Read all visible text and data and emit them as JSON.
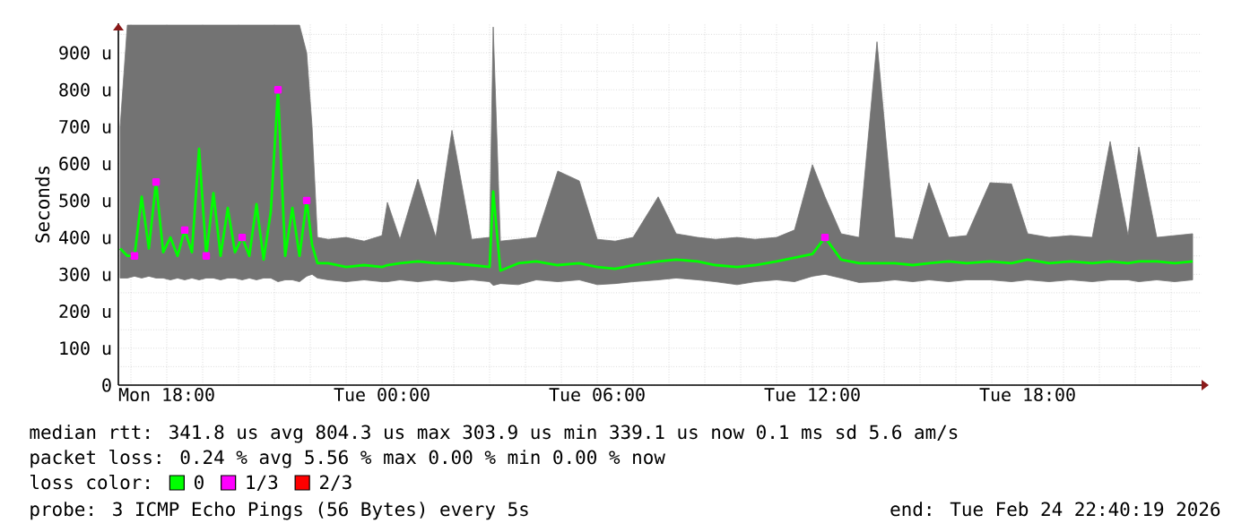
{
  "chart_data": {
    "type": "line",
    "ylabel": "Seconds",
    "legend_title": "loss color:",
    "legend": "bottom",
    "grid": true,
    "xlim": [
      "2026-02-23T16:39",
      "2026-02-24T22:51"
    ],
    "ylim": [
      0,
      980
    ],
    "xticks": [
      {
        "value": "2026-02-23T17:00",
        "label": null
      },
      {
        "value": "2026-02-23T18:00",
        "label": "Mon 18:00"
      },
      {
        "value": "2026-02-23T19:00",
        "label": null
      },
      {
        "value": "2026-02-23T20:00",
        "label": null
      },
      {
        "value": "2026-02-23T21:00",
        "label": null
      },
      {
        "value": "2026-02-23T22:00",
        "label": null
      },
      {
        "value": "2026-02-23T23:00",
        "label": null
      },
      {
        "value": "2026-02-24T00:00",
        "label": "Tue 00:00"
      },
      {
        "value": "2026-02-24T01:00",
        "label": null
      },
      {
        "value": "2026-02-24T02:00",
        "label": null
      },
      {
        "value": "2026-02-24T03:00",
        "label": null
      },
      {
        "value": "2026-02-24T04:00",
        "label": null
      },
      {
        "value": "2026-02-24T05:00",
        "label": null
      },
      {
        "value": "2026-02-24T06:00",
        "label": "Tue 06:00"
      },
      {
        "value": "2026-02-24T07:00",
        "label": null
      },
      {
        "value": "2026-02-24T08:00",
        "label": null
      },
      {
        "value": "2026-02-24T09:00",
        "label": null
      },
      {
        "value": "2026-02-24T10:00",
        "label": null
      },
      {
        "value": "2026-02-24T11:00",
        "label": null
      },
      {
        "value": "2026-02-24T12:00",
        "label": "Tue 12:00"
      },
      {
        "value": "2026-02-24T13:00",
        "label": null
      },
      {
        "value": "2026-02-24T14:00",
        "label": null
      },
      {
        "value": "2026-02-24T15:00",
        "label": null
      },
      {
        "value": "2026-02-24T16:00",
        "label": null
      },
      {
        "value": "2026-02-24T17:00",
        "label": null
      },
      {
        "value": "2026-02-24T18:00",
        "label": "Tue 18:00"
      },
      {
        "value": "2026-02-24T19:00",
        "label": null
      },
      {
        "value": "2026-02-24T20:00",
        "label": null
      },
      {
        "value": "2026-02-24T21:00",
        "label": null
      },
      {
        "value": "2026-02-24T22:00",
        "label": null
      }
    ],
    "yticks": [
      0,
      {
        "value": 50,
        "label": null
      },
      {
        "value": 100,
        "label": "100 u"
      },
      {
        "value": 150,
        "label": null
      },
      {
        "value": 200,
        "label": "200 u"
      },
      {
        "value": 250,
        "label": null
      },
      {
        "value": 300,
        "label": "300 u"
      },
      {
        "value": 350,
        "label": null
      },
      {
        "value": 400,
        "label": "400 u"
      },
      {
        "value": 450,
        "label": null
      },
      {
        "value": 500,
        "label": "500 u"
      },
      {
        "value": 550,
        "label": null
      },
      {
        "value": 600,
        "label": "600 u"
      },
      {
        "value": 650,
        "label": null
      },
      {
        "value": 700,
        "label": "700 u"
      },
      {
        "value": 750,
        "label": null
      },
      {
        "value": 800,
        "label": "800 u"
      },
      {
        "value": 850,
        "label": null
      },
      {
        "value": 900,
        "label": "900 u"
      },
      {
        "value": 950,
        "label": null
      }
    ],
    "series": [
      {
        "name": "0",
        "color": "#00ff00",
        "marker": "none",
        "x": [
          "2026-02-23T16:42",
          "2026-02-23T16:54",
          "2026-02-23T17:06",
          "2026-02-23T17:18",
          "2026-02-23T17:30",
          "2026-02-23T17:42",
          "2026-02-23T17:54",
          "2026-02-23T18:06",
          "2026-02-23T18:18",
          "2026-02-23T18:30",
          "2026-02-23T18:42",
          "2026-02-23T18:54",
          "2026-02-23T19:06",
          "2026-02-23T19:18",
          "2026-02-23T19:30",
          "2026-02-23T19:42",
          "2026-02-23T19:54",
          "2026-02-23T20:06",
          "2026-02-23T20:18",
          "2026-02-23T20:30",
          "2026-02-23T20:42",
          "2026-02-23T20:54",
          "2026-02-23T21:06",
          "2026-02-23T21:18",
          "2026-02-23T21:30",
          "2026-02-23T21:42",
          "2026-02-23T21:54",
          "2026-02-23T22:03",
          "2026-02-23T22:12",
          "2026-02-23T22:30",
          "2026-02-23T23:00",
          "2026-02-23T23:30",
          "2026-02-24T00:00",
          "2026-02-24T00:09",
          "2026-02-24T00:30",
          "2026-02-24T01:00",
          "2026-02-24T01:30",
          "2026-02-24T01:57",
          "2026-02-24T02:30",
          "2026-02-24T03:00",
          "2026-02-24T03:06",
          "2026-02-24T03:18",
          "2026-02-24T03:48",
          "2026-02-24T04:18",
          "2026-02-24T04:54",
          "2026-02-24T05:30",
          "2026-02-24T06:00",
          "2026-02-24T06:30",
          "2026-02-24T07:00",
          "2026-02-24T07:42",
          "2026-02-24T08:12",
          "2026-02-24T08:48",
          "2026-02-24T09:18",
          "2026-02-24T09:54",
          "2026-02-24T10:24",
          "2026-02-24T11:00",
          "2026-02-24T11:30",
          "2026-02-24T12:00",
          "2026-02-24T12:21",
          "2026-02-24T12:48",
          "2026-02-24T13:18",
          "2026-02-24T13:48",
          "2026-02-24T14:18",
          "2026-02-24T14:48",
          "2026-02-24T15:15",
          "2026-02-24T15:48",
          "2026-02-24T16:18",
          "2026-02-24T16:57",
          "2026-02-24T17:33",
          "2026-02-24T18:00",
          "2026-02-24T18:36",
          "2026-02-24T19:12",
          "2026-02-24T19:48",
          "2026-02-24T20:18",
          "2026-02-24T20:48",
          "2026-02-24T21:06",
          "2026-02-24T21:36",
          "2026-02-24T22:06",
          "2026-02-24T22:36"
        ],
        "values": [
          370,
          350,
          350,
          510,
          370,
          550,
          360,
          400,
          350,
          420,
          360,
          640,
          350,
          520,
          350,
          480,
          360,
          400,
          350,
          490,
          340,
          470,
          800,
          350,
          480,
          350,
          500,
          380,
          330,
          330,
          320,
          325,
          320,
          325,
          330,
          335,
          330,
          330,
          325,
          320,
          524,
          310,
          330,
          335,
          325,
          330,
          320,
          315,
          325,
          335,
          340,
          335,
          325,
          320,
          325,
          335,
          345,
          355,
          400,
          340,
          330,
          330,
          330,
          325,
          330,
          335,
          330,
          335,
          330,
          340,
          330,
          335,
          330,
          335,
          330,
          335,
          335,
          330,
          335
        ],
        "lower": [
          290,
          290,
          295,
          290,
          295,
          290,
          290,
          285,
          290,
          285,
          290,
          285,
          290,
          290,
          285,
          290,
          290,
          285,
          290,
          285,
          290,
          290,
          280,
          285,
          285,
          280,
          295,
          300,
          290,
          285,
          280,
          285,
          280,
          280,
          285,
          280,
          285,
          280,
          285,
          280,
          270,
          275,
          272,
          285,
          280,
          285,
          272,
          275,
          280,
          285,
          290,
          285,
          280,
          272,
          280,
          285,
          280,
          295,
          300,
          290,
          278,
          280,
          285,
          280,
          285,
          280,
          285,
          285,
          280,
          285,
          280,
          285,
          280,
          285,
          285,
          280,
          285,
          280,
          285
        ],
        "upper": [
          700,
          975,
          975,
          975,
          975,
          975,
          975,
          975,
          975,
          975,
          975,
          975,
          975,
          975,
          975,
          975,
          975,
          975,
          975,
          975,
          975,
          975,
          975,
          975,
          975,
          975,
          900,
          700,
          400,
          395,
          400,
          390,
          405,
          495,
          395,
          558,
          400,
          690,
          395,
          400,
          970,
          390,
          395,
          400,
          580,
          553,
          395,
          390,
          400,
          510,
          410,
          400,
          395,
          400,
          395,
          400,
          420,
          597,
          510,
          410,
          400,
          930,
          400,
          395,
          548,
          400,
          405,
          548,
          545,
          410,
          400,
          405,
          400,
          660,
          405,
          645,
          400,
          405,
          410
        ]
      },
      {
        "name": "1/3",
        "color": "#ff00ff",
        "type": "scatter",
        "marker": "square",
        "x": [
          "2026-02-23T17:06",
          "2026-02-23T17:42",
          "2026-02-23T18:30",
          "2026-02-23T19:06",
          "2026-02-23T20:06",
          "2026-02-23T21:06",
          "2026-02-23T21:54",
          "2026-02-24T12:21"
        ],
        "values": [
          350,
          550,
          420,
          350,
          400,
          800,
          500,
          400
        ]
      },
      {
        "name": "2/3",
        "color": "#ff0000",
        "type": "scatter",
        "marker": "square"
      }
    ],
    "annotations": [
      "median rtt:  341.8 us avg  804.3 us max  303.9 us min  339.1 us now  0.1 ms sd  5.6   am/s",
      "packet loss: 0.24 % avg  5.56 % max  0.00 % min  0.00 % now",
      "probe:       3 ICMP Echo Pings (56 Bytes) every 5s",
      "end: Tue Feb 24 22:40:19 2026"
    ]
  }
}
